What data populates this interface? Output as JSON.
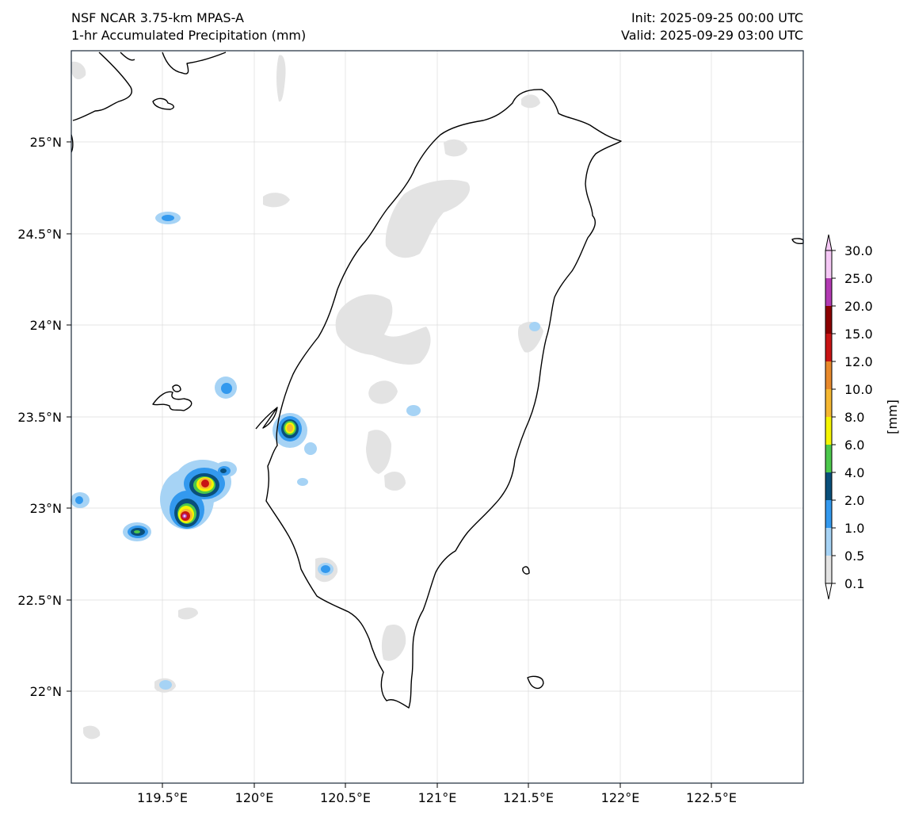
{
  "header": {
    "model": "NSF NCAR 3.75-km MPAS-A",
    "field": "1-hr Accumulated Precipitation (mm)",
    "init": "Init: 2025-09-25 00:00 UTC",
    "valid": "Valid: 2025-09-29 03:00 UTC"
  },
  "map": {
    "x_ticks": [
      "119.5°E",
      "120°E",
      "120.5°E",
      "121°E",
      "121.5°E",
      "122°E",
      "122.5°E"
    ],
    "y_ticks": [
      "25°N",
      "24.5°N",
      "24°N",
      "23.5°N",
      "23°N",
      "22.5°N",
      "22°N"
    ],
    "lon_range": [
      119.0,
      123.0
    ],
    "lat_range": [
      21.5,
      25.5
    ],
    "coastline_color": "#000000",
    "grid": true
  },
  "colorbar": {
    "unit_label": "[mm]",
    "levels": [
      "0.1",
      "0.5",
      "1.0",
      "2.0",
      "4.0",
      "6.0",
      "8.0",
      "10.0",
      "12.0",
      "15.0",
      "20.0",
      "25.0",
      "30.0"
    ],
    "colors": [
      "#e3e3e3",
      "#a6d3f5",
      "#3399ee",
      "#0a4f7a",
      "#4cc84c",
      "#f5f500",
      "#f5b731",
      "#e8892b",
      "#c81414",
      "#8b0000",
      "#b23ab2",
      "#f5c8f5"
    ]
  }
}
